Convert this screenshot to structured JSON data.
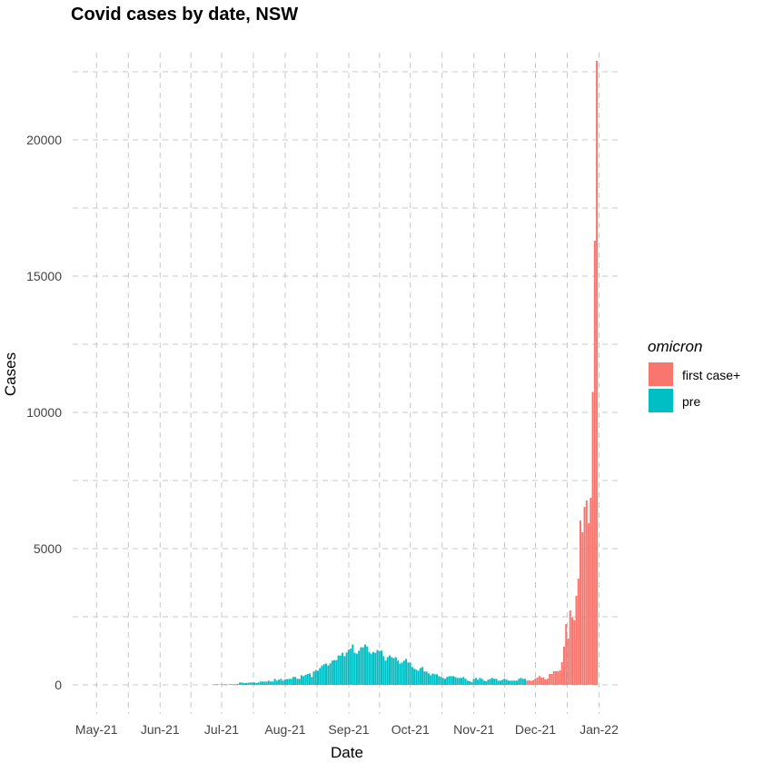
{
  "chart_data": {
    "type": "bar",
    "title": "Covid cases by date, NSW",
    "xlabel": "Date",
    "ylabel": "Cases",
    "xlim": [
      "2021-04-25",
      "2022-01-05"
    ],
    "ylim": [
      -1000,
      23500
    ],
    "x_ticks": [
      {
        "date": "2021-05-01",
        "label": "May-21"
      },
      {
        "date": "2021-06-01",
        "label": "Jun-21"
      },
      {
        "date": "2021-07-01",
        "label": "Jul-21"
      },
      {
        "date": "2021-08-01",
        "label": "Aug-21"
      },
      {
        "date": "2021-09-01",
        "label": "Sep-21"
      },
      {
        "date": "2021-10-01",
        "label": "Oct-21"
      },
      {
        "date": "2021-11-01",
        "label": "Nov-21"
      },
      {
        "date": "2021-12-01",
        "label": "Dec-21"
      },
      {
        "date": "2022-01-01",
        "label": "Jan-22"
      }
    ],
    "y_ticks": [
      {
        "value": 0,
        "label": "0"
      },
      {
        "value": 5000,
        "label": "5000"
      },
      {
        "value": 10000,
        "label": "10000"
      },
      {
        "value": 15000,
        "label": "15000"
      },
      {
        "value": 20000,
        "label": "20000"
      }
    ],
    "grid": true,
    "grid_style": "dashed",
    "legend": {
      "title": "omicron",
      "position": "right"
    },
    "series": [
      {
        "name": "first case+",
        "color": "#F8766D",
        "dates": {
          "from": "2021-11-27",
          "to": "2021-12-31"
        },
        "values": [
          155,
          170,
          150,
          170,
          230,
          270,
          330,
          270,
          270,
          200,
          230,
          400,
          400,
          500,
          500,
          500,
          530,
          830,
          1400,
          2230,
          1700,
          2730,
          2470,
          2370,
          3270,
          3900,
          6030,
          5600,
          6530,
          6770,
          5930,
          6870,
          10750,
          16300,
          22900
        ]
      },
      {
        "name": "pre",
        "color": "#00BFC4",
        "dates": {
          "from": "2021-06-26",
          "to": "2021-11-26"
        },
        "values": [
          6,
          12,
          20,
          22,
          11,
          20,
          18,
          24,
          10,
          22,
          22,
          22,
          24,
          30,
          89,
          89,
          67,
          67,
          78,
          89,
          89,
          89,
          67,
          89,
          122,
          122,
          122,
          122,
          155,
          122,
          122,
          222,
          155,
          189,
          222,
          155,
          200,
          210,
          222,
          222,
          290,
          290,
          222,
          222,
          355,
          320,
          366,
          400,
          420,
          290,
          490,
          545,
          520,
          620,
          710,
          755,
          780,
          710,
          790,
          890,
          910,
          910,
          1077,
          1077,
          1180,
          1055,
          1190,
          1290,
          1330,
          1480,
          1180,
          1145,
          1255,
          1380,
          1380,
          1480,
          1410,
          1210,
          1145,
          1210,
          1180,
          1280,
          1245,
          1255,
          1055,
          890,
          1020,
          1077,
          1020,
          980,
          1020,
          890,
          780,
          820,
          890,
          955,
          820,
          820,
          655,
          590,
          555,
          520,
          620,
          655,
          490,
          490,
          420,
          355,
          420,
          390,
          390,
          320,
          290,
          255,
          222,
          290,
          320,
          320,
          320,
          290,
          255,
          255,
          255,
          290,
          222,
          155,
          133,
          100,
          222,
          255,
          190,
          255,
          222,
          155,
          133,
          190,
          222,
          255,
          222,
          222,
          155,
          155,
          190,
          222,
          190,
          155,
          155,
          155,
          155,
          155,
          222,
          255,
          222,
          222
        ]
      }
    ]
  }
}
